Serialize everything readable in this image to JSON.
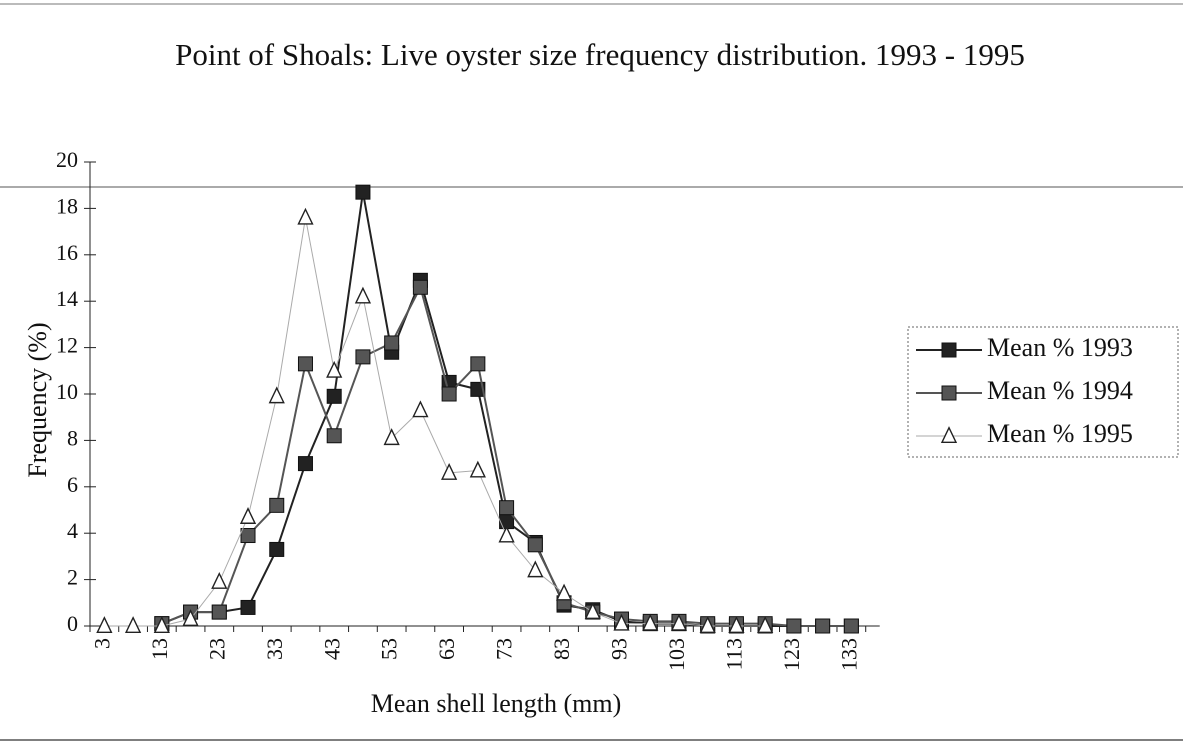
{
  "chart_data": {
    "type": "line",
    "title": "Point of Shoals: Live oyster size frequency distribution. 1993 - 1995",
    "x_label": "Mean shell length (mm)",
    "y_label": "Frequency (%)",
    "categories": [
      3,
      null,
      13,
      null,
      23,
      null,
      33,
      null,
      43,
      null,
      53,
      null,
      63,
      null,
      73,
      null,
      83,
      null,
      93,
      null,
      103,
      null,
      113,
      null,
      123,
      null,
      133
    ],
    "series": [
      {
        "name": "Mean % 1993",
        "color": "#222222",
        "marker": "square",
        "values": [
          null,
          null,
          0.1,
          0.6,
          0.6,
          0.8,
          3.3,
          7.0,
          9.9,
          18.7,
          11.8,
          14.9,
          10.5,
          10.2,
          4.5,
          3.6,
          0.9,
          0.7,
          0.2,
          0.1,
          0.1,
          0.0,
          0.0,
          0.0,
          0.0,
          0.0,
          0.0
        ]
      },
      {
        "name": "Mean % 1994",
        "color": "#555555",
        "marker": "square",
        "values": [
          null,
          null,
          0.1,
          0.6,
          0.6,
          3.9,
          5.2,
          11.3,
          8.2,
          11.6,
          12.2,
          14.6,
          10.0,
          11.3,
          5.1,
          3.5,
          1.0,
          0.6,
          0.3,
          0.2,
          0.2,
          0.1,
          0.1,
          0.1,
          0.0,
          0.0,
          0.0
        ]
      },
      {
        "name": "Mean % 1995",
        "color": "#aaaaaa",
        "marker": "triangle",
        "values": [
          0.0,
          0.0,
          0.0,
          0.3,
          1.9,
          4.7,
          9.9,
          17.6,
          11.0,
          14.2,
          8.1,
          9.3,
          6.6,
          6.7,
          3.9,
          2.4,
          1.4,
          0.6,
          0.1,
          0.1,
          0.1,
          0.0,
          0.0,
          0.0,
          null,
          null,
          null
        ]
      }
    ],
    "ylim": [
      0,
      20
    ],
    "yticks": [
      0,
      2,
      4,
      6,
      8,
      10,
      12,
      14,
      16,
      18,
      20
    ],
    "legend": "right",
    "grid": false
  }
}
